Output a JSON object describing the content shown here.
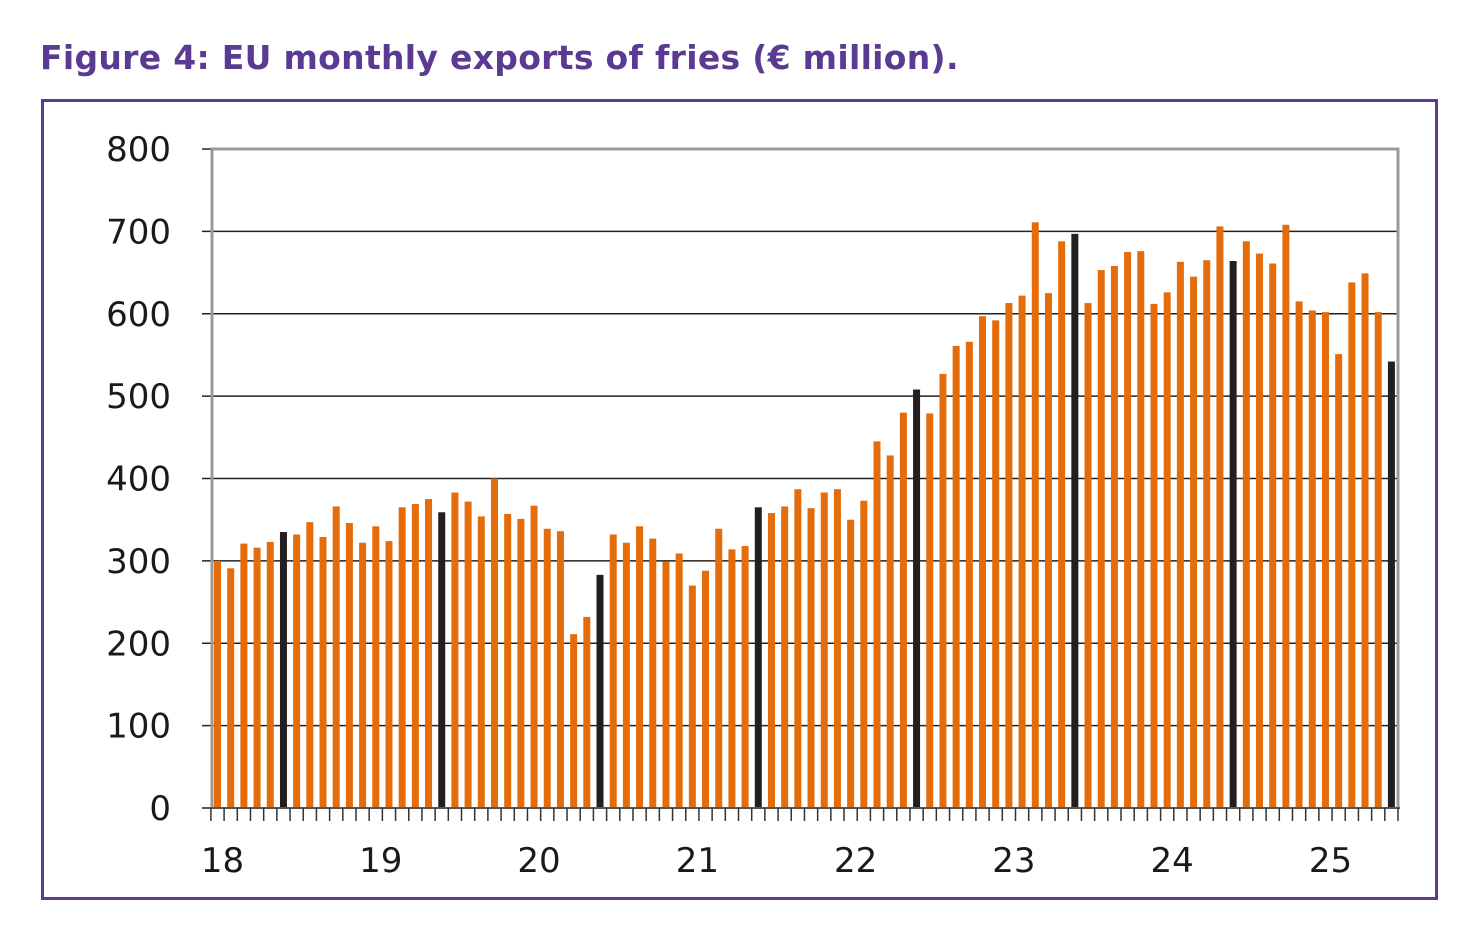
{
  "title": "Figure 4: EU monthly exports of fries (€ million).",
  "colors": {
    "title": "#5b3a94",
    "frame": "#5b3a94",
    "bar": "#e46c0a",
    "highlight_bar": "#231f20",
    "gridline": "#222222",
    "plot_border": "#9a9a9a"
  },
  "chart_data": {
    "type": "bar",
    "title": "Figure 4: EU monthly exports of fries (€ million).",
    "xlabel": "",
    "ylabel": "",
    "ylim": [
      0,
      800
    ],
    "yticks": [
      0,
      100,
      200,
      300,
      400,
      500,
      600,
      700,
      800
    ],
    "grid": true,
    "legend": "none",
    "x_tick_labels": [
      "18",
      "19",
      "20",
      "21",
      "22",
      "23",
      "24",
      "25"
    ],
    "x_tick_label_note": "Year labels placed at January of each year (2018–2025)",
    "highlight_rule": "June of each year shown in dark bar",
    "categories": [
      "2018-01",
      "2018-02",
      "2018-03",
      "2018-04",
      "2018-05",
      "2018-06",
      "2018-07",
      "2018-08",
      "2018-09",
      "2018-10",
      "2018-11",
      "2018-12",
      "2019-01",
      "2019-02",
      "2019-03",
      "2019-04",
      "2019-05",
      "2019-06",
      "2019-07",
      "2019-08",
      "2019-09",
      "2019-10",
      "2019-11",
      "2019-12",
      "2020-01",
      "2020-02",
      "2020-03",
      "2020-04",
      "2020-05",
      "2020-06",
      "2020-07",
      "2020-08",
      "2020-09",
      "2020-10",
      "2020-11",
      "2020-12",
      "2021-01",
      "2021-02",
      "2021-03",
      "2021-04",
      "2021-05",
      "2021-06",
      "2021-07",
      "2021-08",
      "2021-09",
      "2021-10",
      "2021-11",
      "2021-12",
      "2022-01",
      "2022-02",
      "2022-03",
      "2022-04",
      "2022-05",
      "2022-06",
      "2022-07",
      "2022-08",
      "2022-09",
      "2022-10",
      "2022-11",
      "2022-12",
      "2023-01",
      "2023-02",
      "2023-03",
      "2023-04",
      "2023-05",
      "2023-06",
      "2023-07",
      "2023-08",
      "2023-09",
      "2023-10",
      "2023-11",
      "2023-12",
      "2024-01",
      "2024-02",
      "2024-03",
      "2024-04",
      "2024-05",
      "2024-06",
      "2024-07",
      "2024-08",
      "2024-09",
      "2024-10",
      "2024-11",
      "2024-12",
      "2025-01",
      "2025-02",
      "2025-03",
      "2025-04",
      "2025-05",
      "2025-06"
    ],
    "values": [
      300,
      291,
      321,
      316,
      323,
      335,
      332,
      347,
      329,
      366,
      346,
      322,
      342,
      324,
      365,
      369,
      375,
      359,
      383,
      372,
      354,
      400,
      357,
      351,
      367,
      339,
      336,
      211,
      232,
      283,
      332,
      322,
      342,
      327,
      299,
      309,
      270,
      288,
      339,
      314,
      318,
      365,
      358,
      366,
      387,
      364,
      383,
      387,
      350,
      373,
      445,
      428,
      480,
      508,
      479,
      527,
      561,
      566,
      597,
      592,
      613,
      622,
      711,
      625,
      688,
      697,
      613,
      653,
      658,
      675,
      676,
      612,
      626,
      663,
      645,
      665,
      706,
      664,
      688,
      673,
      661,
      708,
      615,
      604,
      602,
      551,
      638,
      649,
      602,
      542
    ],
    "highlight": [
      false,
      false,
      false,
      false,
      false,
      true,
      false,
      false,
      false,
      false,
      false,
      false,
      false,
      false,
      false,
      false,
      false,
      true,
      false,
      false,
      false,
      false,
      false,
      false,
      false,
      false,
      false,
      false,
      false,
      true,
      false,
      false,
      false,
      false,
      false,
      false,
      false,
      false,
      false,
      false,
      false,
      true,
      false,
      false,
      false,
      false,
      false,
      false,
      false,
      false,
      false,
      false,
      false,
      true,
      false,
      false,
      false,
      false,
      false,
      false,
      false,
      false,
      false,
      false,
      false,
      true,
      false,
      false,
      false,
      false,
      false,
      false,
      false,
      false,
      false,
      false,
      false,
      true,
      false,
      false,
      false,
      false,
      false,
      false,
      false,
      false,
      false,
      false,
      false,
      true
    ]
  }
}
